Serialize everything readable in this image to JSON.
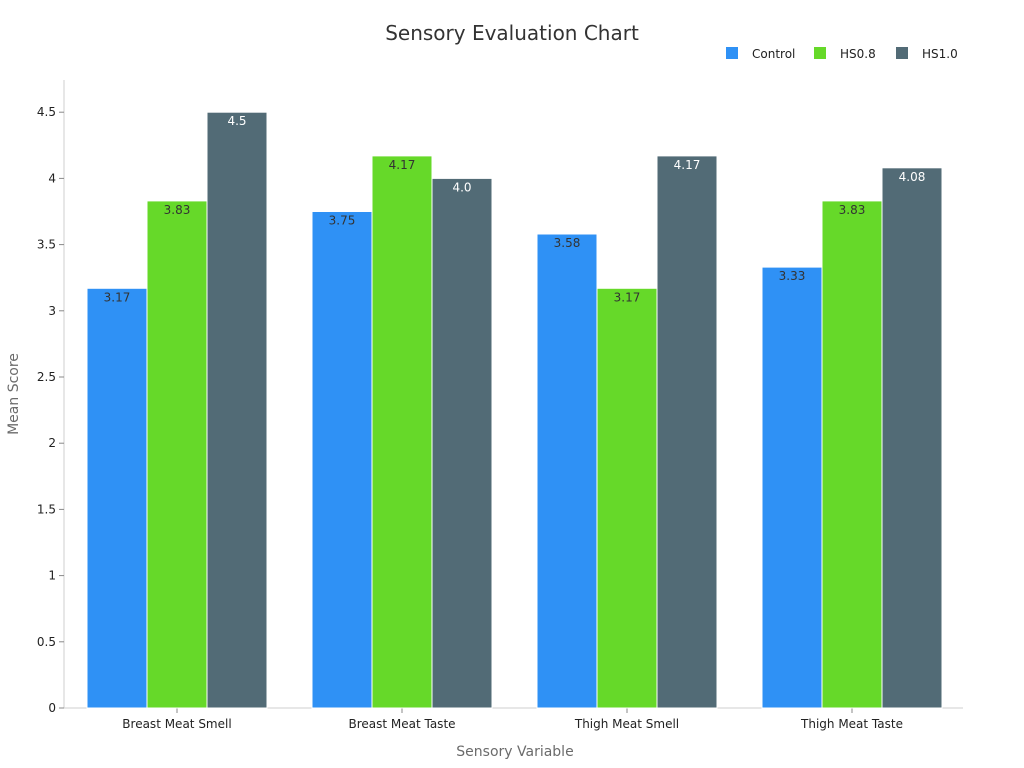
{
  "chart_data": {
    "type": "bar",
    "title": "Sensory Evaluation Chart",
    "xlabel": "Sensory Variable",
    "ylabel": "Mean Score",
    "categories": [
      "Breast Meat Smell",
      "Breast Meat Taste",
      "Thigh Meat Smell",
      "Thigh Meat Taste"
    ],
    "series": [
      {
        "name": "Control",
        "color": "#2f91f5",
        "values": [
          3.17,
          3.75,
          3.58,
          3.33
        ],
        "labels": [
          "3.17",
          "3.75",
          "3.58",
          "3.33"
        ]
      },
      {
        "name": "HS0.8",
        "color": "#66d929",
        "values": [
          3.83,
          4.17,
          3.17,
          3.83
        ],
        "labels": [
          "3.83",
          "4.17",
          "3.17",
          "3.83"
        ]
      },
      {
        "name": "HS1.0",
        "color": "#526b76",
        "values": [
          4.5,
          4.0,
          4.17,
          4.08
        ],
        "labels": [
          "4.5",
          "4.0",
          "4.17",
          "4.08"
        ]
      }
    ],
    "yticks": [
      "0",
      "0.5",
      "1",
      "1.5",
      "2",
      "2.5",
      "3",
      "3.5",
      "4",
      "4.5"
    ],
    "ylim": [
      0,
      4.75
    ],
    "grid": false,
    "legend_position": "top-right"
  }
}
